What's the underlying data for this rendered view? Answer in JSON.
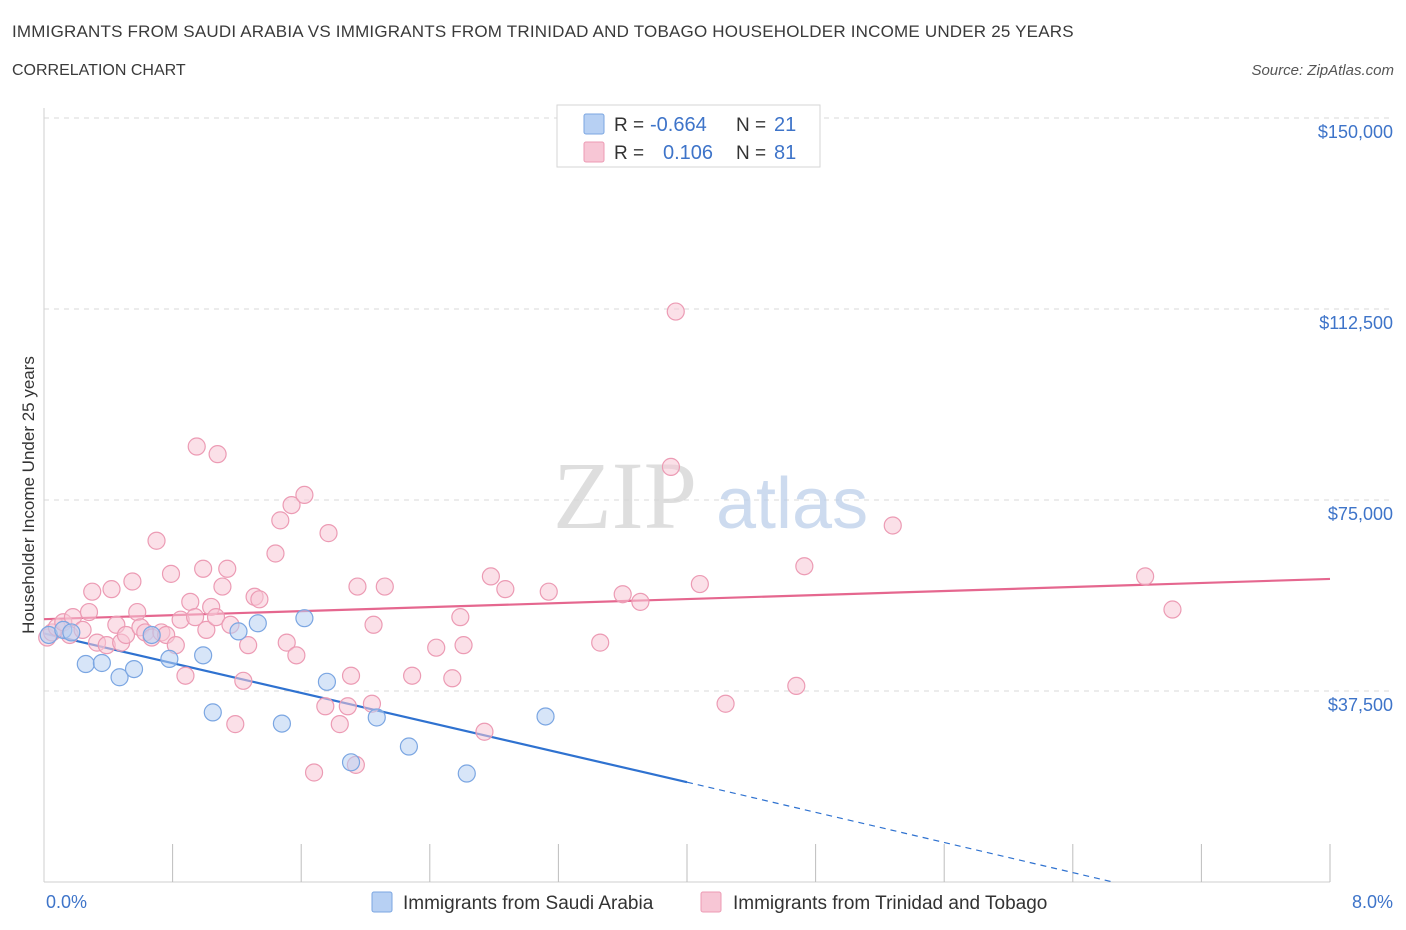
{
  "header": {
    "title": "IMMIGRANTS FROM SAUDI ARABIA VS IMMIGRANTS FROM TRINIDAD AND TOBAGO HOUSEHOLDER INCOME UNDER 25 YEARS",
    "subtitle": "CORRELATION CHART",
    "source": "Source: ZipAtlas.com"
  },
  "watermark": {
    "zip": "ZIP",
    "atlas": "atlas"
  },
  "legend": {
    "r_label": "R =",
    "n_label": "N =",
    "rows": [
      {
        "r": "-0.664",
        "n": "21"
      },
      {
        "r": "0.106",
        "n": "81"
      }
    ]
  },
  "colors": {
    "saudi_fill": "#b7d0f3",
    "saudi_stroke": "#7ba6e2",
    "saudi_line": "#2f72d0",
    "tt_fill": "#f7c6d5",
    "tt_stroke": "#ec9bb4",
    "tt_line": "#e5678f",
    "grid": "#d9d9d9",
    "tick_label": "#3e74c9"
  },
  "chart_data": {
    "type": "scatter",
    "title": "IMMIGRANTS FROM SAUDI ARABIA VS IMMIGRANTS FROM TRINIDAD AND TOBAGO HOUSEHOLDER INCOME UNDER 25 YEARS",
    "xlabel": "",
    "ylabel": "Householder Income Under 25 years",
    "xlim": [
      0,
      8
    ],
    "ylim": [
      0,
      150000
    ],
    "x_tick_labels": [
      "0.0%",
      "8.0%"
    ],
    "y_ticks": [
      37500,
      75000,
      112500,
      150000
    ],
    "y_tick_labels": [
      "$37,500",
      "$75,000",
      "$112,500",
      "$150,000"
    ],
    "grid": true,
    "series": [
      {
        "name": "Immigrants from Saudi Arabia",
        "points": [
          [
            0.03,
            48500
          ],
          [
            0.12,
            49500
          ],
          [
            0.17,
            49000
          ],
          [
            0.26,
            42800
          ],
          [
            0.36,
            43000
          ],
          [
            0.47,
            40200
          ],
          [
            0.56,
            41800
          ],
          [
            0.67,
            48500
          ],
          [
            0.78,
            43800
          ],
          [
            0.99,
            44500
          ],
          [
            1.05,
            33300
          ],
          [
            1.21,
            49200
          ],
          [
            1.33,
            50800
          ],
          [
            1.48,
            31100
          ],
          [
            1.62,
            51800
          ],
          [
            1.76,
            39300
          ],
          [
            1.91,
            23500
          ],
          [
            2.07,
            32300
          ],
          [
            2.27,
            26600
          ],
          [
            2.63,
            21300
          ],
          [
            3.12,
            32500
          ]
        ],
        "trend": {
          "x0": 0.0,
          "y0": 48800,
          "x1": 4.0,
          "y1": 19600,
          "dash_x1": 6.65,
          "dash_y1": 0
        }
      },
      {
        "name": "Immigrants from Trinidad and Tobago",
        "points": [
          [
            0.02,
            48000
          ],
          [
            0.05,
            49000
          ],
          [
            0.08,
            50000
          ],
          [
            0.12,
            51000
          ],
          [
            0.16,
            48500
          ],
          [
            0.18,
            52000
          ],
          [
            0.24,
            49500
          ],
          [
            0.28,
            53000
          ],
          [
            0.3,
            57000
          ],
          [
            0.33,
            47000
          ],
          [
            0.39,
            46500
          ],
          [
            0.42,
            57500
          ],
          [
            0.45,
            50500
          ],
          [
            0.48,
            47000
          ],
          [
            0.51,
            48500
          ],
          [
            0.55,
            59000
          ],
          [
            0.58,
            53000
          ],
          [
            0.6,
            50000
          ],
          [
            0.63,
            49000
          ],
          [
            0.67,
            48000
          ],
          [
            0.7,
            67000
          ],
          [
            0.73,
            49000
          ],
          [
            0.76,
            48500
          ],
          [
            0.79,
            60500
          ],
          [
            0.82,
            46500
          ],
          [
            0.85,
            51500
          ],
          [
            0.88,
            40500
          ],
          [
            0.91,
            55000
          ],
          [
            0.94,
            52000
          ],
          [
            0.95,
            85500
          ],
          [
            0.99,
            61500
          ],
          [
            1.01,
            49500
          ],
          [
            1.04,
            54000
          ],
          [
            1.07,
            52000
          ],
          [
            1.08,
            84000
          ],
          [
            1.11,
            58000
          ],
          [
            1.14,
            61500
          ],
          [
            1.16,
            50500
          ],
          [
            1.19,
            31000
          ],
          [
            1.24,
            39500
          ],
          [
            1.27,
            46500
          ],
          [
            1.31,
            56000
          ],
          [
            1.34,
            55500
          ],
          [
            1.44,
            64500
          ],
          [
            1.47,
            71000
          ],
          [
            1.51,
            47000
          ],
          [
            1.54,
            74000
          ],
          [
            1.57,
            44500
          ],
          [
            1.62,
            76000
          ],
          [
            1.68,
            21500
          ],
          [
            1.75,
            34500
          ],
          [
            1.77,
            68500
          ],
          [
            1.84,
            31000
          ],
          [
            1.89,
            34500
          ],
          [
            1.91,
            40500
          ],
          [
            1.94,
            23000
          ],
          [
            1.95,
            58000
          ],
          [
            2.04,
            35000
          ],
          [
            2.05,
            50500
          ],
          [
            2.12,
            58000
          ],
          [
            2.29,
            40500
          ],
          [
            2.44,
            46000
          ],
          [
            2.54,
            40000
          ],
          [
            2.59,
            52000
          ],
          [
            2.61,
            46500
          ],
          [
            2.74,
            29500
          ],
          [
            2.78,
            60000
          ],
          [
            2.87,
            57500
          ],
          [
            3.14,
            57000
          ],
          [
            3.46,
            47000
          ],
          [
            3.6,
            56500
          ],
          [
            3.71,
            55000
          ],
          [
            3.9,
            81500
          ],
          [
            3.93,
            112000
          ],
          [
            4.08,
            58500
          ],
          [
            4.24,
            35000
          ],
          [
            4.68,
            38500
          ],
          [
            4.73,
            62000
          ],
          [
            5.28,
            70000
          ],
          [
            6.85,
            60000
          ],
          [
            7.02,
            53500
          ]
        ],
        "trend": {
          "x0": 0.0,
          "y0": 51600,
          "x1": 8.0,
          "y1": 59500
        }
      }
    ]
  }
}
